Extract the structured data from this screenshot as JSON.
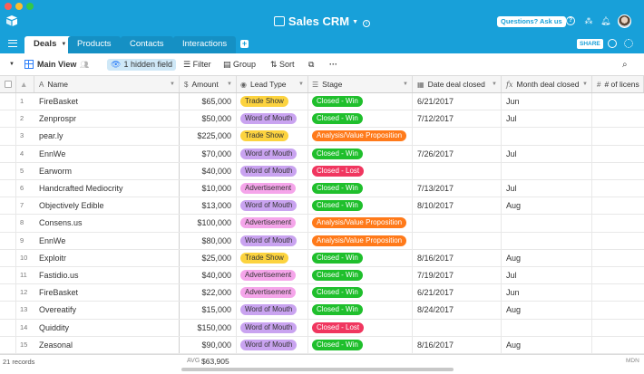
{
  "app": {
    "title": "Sales CRM",
    "ask_button": "Questions? Ask us"
  },
  "tabs": [
    {
      "label": "Deals"
    },
    {
      "label": "Products"
    },
    {
      "label": "Contacts"
    },
    {
      "label": "Interactions"
    }
  ],
  "share_label": "SHARE",
  "toolbar": {
    "view_name": "Main View",
    "hidden_fields": "1 hidden field",
    "filter": "Filter",
    "group": "Group",
    "sort": "Sort"
  },
  "columns": {
    "name": "Name",
    "amount": "Amount",
    "lead_type": "Lead Type",
    "stage": "Stage",
    "date_closed": "Date deal closed",
    "month_closed": "Month deal closed",
    "licenses": "# of licens"
  },
  "rows": [
    {
      "num": "1",
      "name": "FireBasket",
      "amount": "$65,000",
      "lead": "Trade Show",
      "stage": "Closed - Win",
      "date": "6/21/2017",
      "month": "Jun"
    },
    {
      "num": "2",
      "name": "Zenprospr",
      "amount": "$50,000",
      "lead": "Word of Mouth",
      "stage": "Closed - Win",
      "date": "7/12/2017",
      "month": "Jul"
    },
    {
      "num": "3",
      "name": "pear.ly",
      "amount": "$225,000",
      "lead": "Trade Show",
      "stage": "Analysis/Value Proposition",
      "date": "",
      "month": ""
    },
    {
      "num": "4",
      "name": "EnnWe",
      "amount": "$70,000",
      "lead": "Word of Mouth",
      "stage": "Closed - Win",
      "date": "7/26/2017",
      "month": "Jul"
    },
    {
      "num": "5",
      "name": "Earworm",
      "amount": "$40,000",
      "lead": "Word of Mouth",
      "stage": "Closed - Lost",
      "date": "",
      "month": ""
    },
    {
      "num": "6",
      "name": "Handcrafted Mediocrity",
      "amount": "$10,000",
      "lead": "Advertisement",
      "stage": "Closed - Win",
      "date": "7/13/2017",
      "month": "Jul"
    },
    {
      "num": "7",
      "name": "Objectively Edible",
      "amount": "$13,000",
      "lead": "Word of Mouth",
      "stage": "Closed - Win",
      "date": "8/10/2017",
      "month": "Aug"
    },
    {
      "num": "8",
      "name": "Consens.us",
      "amount": "$100,000",
      "lead": "Advertisement",
      "stage": "Analysis/Value Proposition",
      "date": "",
      "month": ""
    },
    {
      "num": "9",
      "name": "EnnWe",
      "amount": "$80,000",
      "lead": "Word of Mouth",
      "stage": "Analysis/Value Proposition",
      "date": "",
      "month": ""
    },
    {
      "num": "10",
      "name": "Exploitr",
      "amount": "$25,000",
      "lead": "Trade Show",
      "stage": "Closed - Win",
      "date": "8/16/2017",
      "month": "Aug"
    },
    {
      "num": "11",
      "name": "Fastidio.us",
      "amount": "$40,000",
      "lead": "Advertisement",
      "stage": "Closed - Win",
      "date": "7/19/2017",
      "month": "Jul"
    },
    {
      "num": "12",
      "name": "FireBasket",
      "amount": "$22,000",
      "lead": "Advertisement",
      "stage": "Closed - Win",
      "date": "6/21/2017",
      "month": "Jun"
    },
    {
      "num": "13",
      "name": "Overeatify",
      "amount": "$15,000",
      "lead": "Word of Mouth",
      "stage": "Closed - Win",
      "date": "8/24/2017",
      "month": "Aug"
    },
    {
      "num": "14",
      "name": "Quiddity",
      "amount": "$150,000",
      "lead": "Word of Mouth",
      "stage": "Closed - Lost",
      "date": "",
      "month": ""
    },
    {
      "num": "15",
      "name": "Zeasonal",
      "amount": "$90,000",
      "lead": "Word of Mouth",
      "stage": "Closed - Win",
      "date": "8/16/2017",
      "month": "Aug"
    }
  ],
  "footer": {
    "records": "21 records",
    "avg_label": "AVG",
    "avg_value": "$63,905",
    "mdn_label": "MDN"
  },
  "colors": {
    "brand": "#18a0d9",
    "trade_show": "#fcd33f",
    "word_of_mouth": "#c9a3f0",
    "advertisement": "#f5a5ea",
    "closed_win": "#1fbf2c",
    "closed_lost": "#f0365f",
    "analysis": "#ff7a1a"
  },
  "icons": [
    "menu-icon",
    "grid-view-icon",
    "eye-icon",
    "filter-icon",
    "group-icon",
    "sort-icon",
    "search-icon",
    "bell-icon",
    "help-icon",
    "history-icon",
    "settings-icon"
  ]
}
